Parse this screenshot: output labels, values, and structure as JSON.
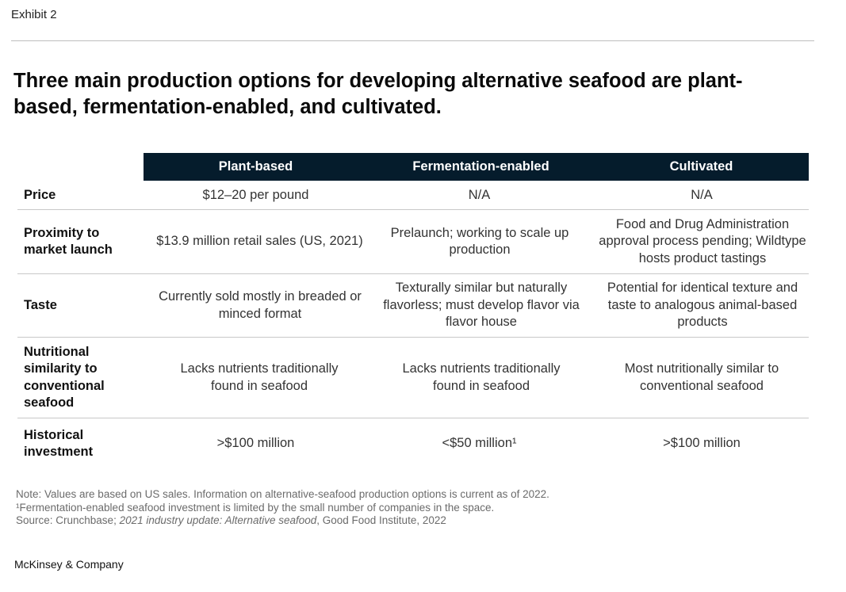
{
  "exhibit_label": "Exhibit 2",
  "title": "Three main production options for developing alternative seafood are plant-based, fermentation-enabled, and cultivated.",
  "table": {
    "columns": [
      "Plant-based",
      "Fermentation-enabled",
      "Cultivated"
    ],
    "rows": [
      {
        "label": "Price",
        "values": [
          "$12–20 per pound",
          "N/A",
          "N/A"
        ]
      },
      {
        "label": "Proximity to market launch",
        "values": [
          "$13.9 million retail sales (US, 2021)",
          "Prelaunch; working to scale up production",
          "Food and Drug Administration approval process pending; Wildtype hosts product tastings"
        ]
      },
      {
        "label": "Taste",
        "values": [
          "Currently sold mostly in breaded or minced format",
          "Texturally similar but naturally flavorless; must develop flavor via flavor house",
          "Potential for identical texture and taste to analogous animal-based products"
        ]
      },
      {
        "label": "Nutritional similarity to conventional seafood",
        "values": [
          "Lacks nutrients traditionally found in seafood",
          "Lacks nutrients traditionally found in seafood",
          "Most nutritionally similar to conventional seafood"
        ]
      },
      {
        "label": "Historical investment",
        "values": [
          ">$100 million",
          "<$50 million¹",
          ">$100 million"
        ]
      }
    ]
  },
  "notes": {
    "note": "Note: Values are based on US sales. Information on alternative-seafood production options is current as of 2022.",
    "footnote": "¹Fermentation-enabled seafood investment is limited by the small number of companies in the space.",
    "source_prefix": "Source: Crunchbase; ",
    "source_italic": "2021 industry update: Alternative seafood",
    "source_suffix": ", Good Food Institute, 2022"
  },
  "brand": "McKinsey & Company",
  "colors": {
    "header_bg": "#051c2c",
    "header_text": "#ffffff",
    "divider": "#c8c8c8"
  }
}
